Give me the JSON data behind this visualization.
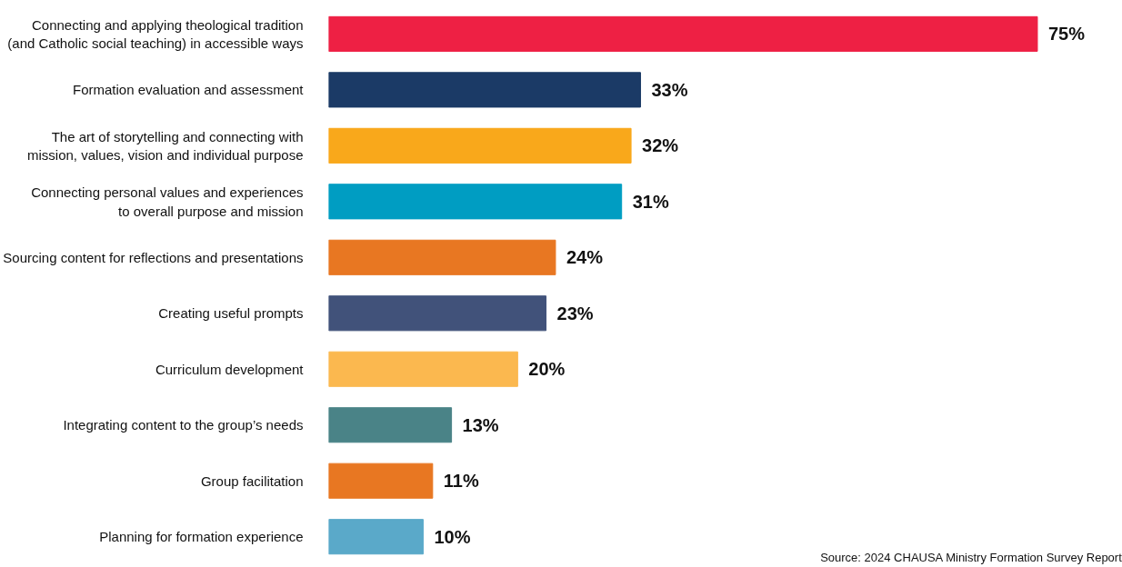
{
  "chart_data": {
    "type": "bar",
    "orientation": "horizontal",
    "categories": [
      "Connecting and applying theological tradition\n(and Catholic social teaching) in accessible ways",
      "Formation evaluation and assessment",
      "The art of storytelling and connecting with\nmission, values, vision and individual purpose",
      "Connecting personal values and experiences\nto overall purpose and mission",
      "Sourcing content for reflections and presentations",
      "Creating useful prompts",
      "Curriculum development",
      "Integrating content to the group’s needs",
      "Group facilitation",
      "Planning for formation experience"
    ],
    "values": [
      75,
      33,
      32,
      31,
      24,
      23,
      20,
      13,
      11,
      10
    ],
    "value_labels": [
      "75%",
      "33%",
      "32%",
      "31%",
      "24%",
      "23%",
      "20%",
      "13%",
      "11%",
      "10%"
    ],
    "colors": [
      "#ee2044",
      "#1b3a66",
      "#f9a81b",
      "#009dc2",
      "#e87722",
      "#41527a",
      "#fbb84f",
      "#4a8387",
      "#e87722",
      "#5aa9c9"
    ],
    "grid": false,
    "annotations": [
      "Source: 2024 CHAUSA Ministry Formation Survey Report"
    ]
  }
}
